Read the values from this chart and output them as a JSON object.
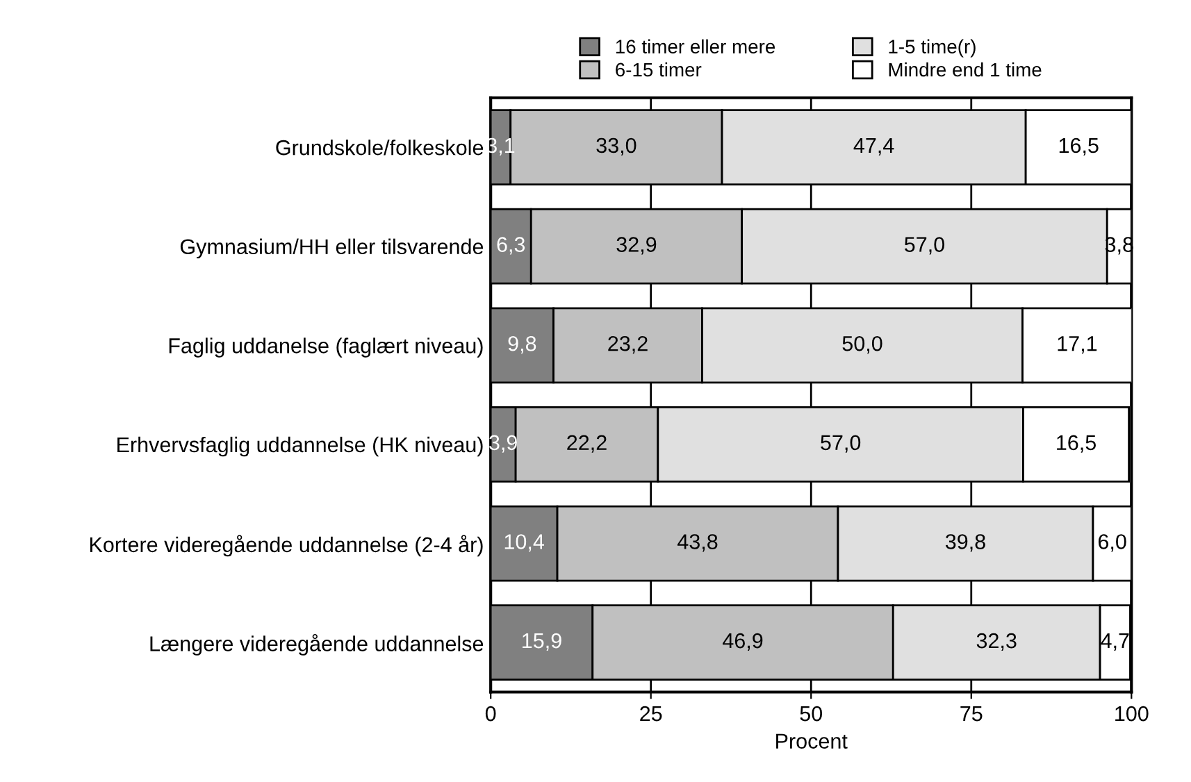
{
  "chart_data": {
    "type": "bar",
    "orientation": "horizontal",
    "stacked": true,
    "xlabel": "Procent",
    "categories": [
      "Grundskole/folkeskole",
      "Gymnasium/HH eller tilsvarende",
      "Faglig uddanelse (faglært niveau)",
      "Erhvervsfaglig uddannelse (HK niveau)",
      "Kortere videregående uddannelse (2-4 år)",
      "Længere videregående uddannelse"
    ],
    "series": [
      {
        "name": "16 timer eller mere",
        "color": "#808080",
        "values": [
          3.1,
          6.3,
          9.8,
          3.9,
          10.4,
          15.9
        ],
        "value_labels": [
          "3,1",
          "6,3",
          "9,8",
          "3,9",
          "10,4",
          "15,9"
        ]
      },
      {
        "name": "6-15 timer",
        "color": "#c0c0c0",
        "values": [
          33.0,
          32.9,
          23.2,
          22.2,
          43.8,
          46.9
        ],
        "value_labels": [
          "33,0",
          "32,9",
          "23,2",
          "22,2",
          "43,8",
          "46,9"
        ]
      },
      {
        "name": "1-5 time(r)",
        "color": "#e0e0e0",
        "values": [
          47.4,
          57.0,
          50.0,
          57.0,
          39.8,
          32.3
        ],
        "value_labels": [
          "47,4",
          "57,0",
          "50,0",
          "57,0",
          "39,8",
          "32,3"
        ]
      },
      {
        "name": "Mindre end 1 time",
        "color": "#ffffff",
        "values": [
          16.5,
          3.8,
          17.1,
          16.5,
          6.0,
          4.7
        ],
        "value_labels": [
          "16,5",
          "3,8",
          "17,1",
          "16,5",
          "6,0",
          "4,7"
        ]
      }
    ],
    "xlim": [
      0,
      100
    ],
    "xticks": [
      0,
      25,
      50,
      75,
      100
    ],
    "grid": "x",
    "legend": "top"
  }
}
